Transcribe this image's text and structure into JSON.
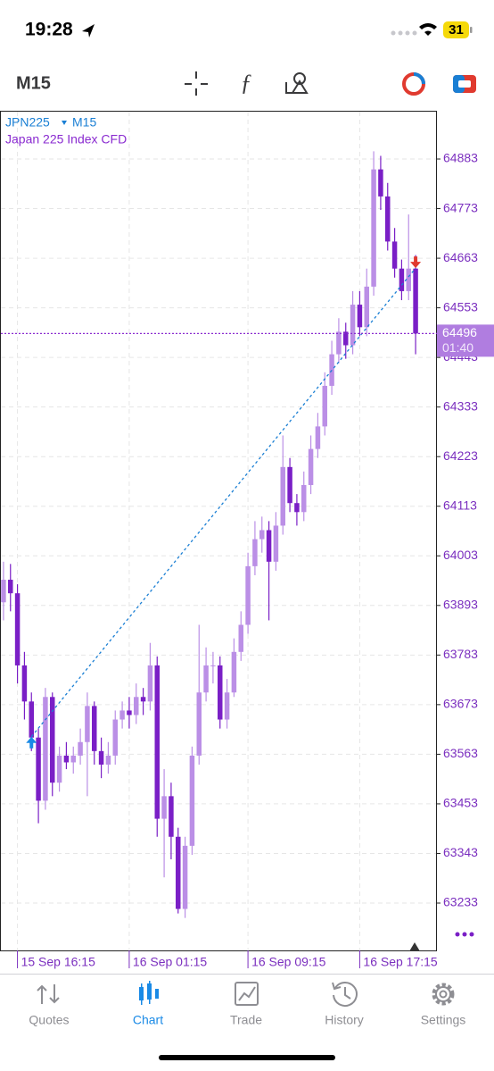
{
  "status_bar": {
    "time": "19:28",
    "battery": "31"
  },
  "toolbar": {
    "timeframe": "M15"
  },
  "tabs": [
    "Quotes",
    "Chart",
    "Trade",
    "History",
    "Settings"
  ],
  "chart_data": {
    "type": "candlestick",
    "symbol": "JPN225",
    "timeframe": "M15",
    "description": "Japan 225 Index CFD",
    "categories": [
      null,
      null,
      "15 Sep 16:15",
      null,
      null,
      null,
      null,
      null,
      null,
      null,
      null,
      null,
      null,
      null,
      null,
      null,
      null,
      null,
      "16 Sep 01:15",
      null,
      null,
      null,
      null,
      null,
      null,
      null,
      null,
      null,
      null,
      null,
      null,
      null,
      null,
      null,
      null,
      "16 Sep 09:15",
      null,
      null,
      null,
      null,
      null,
      null,
      null,
      null,
      null,
      null,
      null,
      null,
      null,
      null,
      null,
      "16 Sep 17:15",
      null,
      null,
      null,
      null,
      null,
      null,
      null,
      null
    ],
    "open": [
      63900,
      63950,
      63920,
      63760,
      63680,
      63600,
      63460,
      63690,
      63500,
      63560,
      63545,
      63560,
      63590,
      63670,
      63570,
      63540,
      63560,
      63640,
      63660,
      63650,
      63690,
      63680,
      63760,
      63420,
      63470,
      63380,
      63220,
      63360,
      63560,
      63700,
      63760,
      63760,
      63640,
      63700,
      63790,
      63850,
      63980,
      64040,
      64060,
      63990,
      64070,
      64200,
      64120,
      64100,
      64160,
      64240,
      64290,
      64380,
      64450,
      64500,
      64470,
      64560,
      64510,
      64600,
      64860,
      64800,
      64700,
      64640,
      64590,
      64640
    ],
    "high": [
      63990,
      63985,
      63940,
      63790,
      63700,
      63620,
      63710,
      63700,
      63580,
      63590,
      63580,
      63620,
      63700,
      63680,
      63600,
      63590,
      63660,
      63680,
      63690,
      63720,
      63710,
      63810,
      63780,
      63530,
      63500,
      63400,
      63380,
      63580,
      63850,
      63800,
      63790,
      63780,
      63730,
      63820,
      63880,
      64010,
      64080,
      64090,
      64080,
      64100,
      64270,
      64220,
      64140,
      64190,
      64270,
      64320,
      64410,
      64480,
      64530,
      64520,
      64590,
      64590,
      64640,
      64900,
      64890,
      64830,
      64730,
      64660,
      64760,
      64670
    ],
    "low": [
      63860,
      63880,
      63720,
      63640,
      63570,
      63410,
      63440,
      63470,
      63480,
      63530,
      63520,
      63540,
      63470,
      63540,
      63510,
      63520,
      63540,
      63620,
      63620,
      63630,
      63650,
      63660,
      63380,
      63290,
      63330,
      63210,
      63200,
      63340,
      63540,
      63680,
      63720,
      63620,
      63620,
      63690,
      63770,
      63830,
      63960,
      64010,
      63860,
      63970,
      64050,
      64100,
      64070,
      64080,
      64140,
      64220,
      64270,
      64360,
      64430,
      64440,
      64450,
      64490,
      64490,
      64580,
      64770,
      64680,
      64620,
      64570,
      64570,
      64450
    ],
    "close": [
      63950,
      63920,
      63760,
      63680,
      63600,
      63460,
      63690,
      63500,
      63560,
      63545,
      63560,
      63590,
      63670,
      63570,
      63540,
      63560,
      63640,
      63660,
      63650,
      63690,
      63680,
      63760,
      63420,
      63470,
      63380,
      63220,
      63360,
      63560,
      63700,
      63760,
      63760,
      63640,
      63700,
      63790,
      63850,
      63980,
      64040,
      64060,
      63990,
      64070,
      64200,
      64120,
      64100,
      64160,
      64240,
      64290,
      64380,
      64450,
      64500,
      64470,
      64560,
      64510,
      64600,
      64860,
      64800,
      64700,
      64640,
      64590,
      64640,
      64496
    ],
    "up_color": "#bb8fe6",
    "down_color": "#7a1fc6",
    "ylim": [
      63128,
      64990
    ],
    "yticks": [
      64883,
      64773,
      64663,
      64553,
      64443,
      64333,
      64223,
      64113,
      64003,
      63893,
      63783,
      63673,
      63563,
      63453,
      63343,
      63233
    ],
    "grid": true,
    "current_price": 64496,
    "countdown": "01:40",
    "trade": {
      "open_index": 4,
      "open_price": 63602,
      "close_index": 59,
      "close_price": 64641
    }
  }
}
